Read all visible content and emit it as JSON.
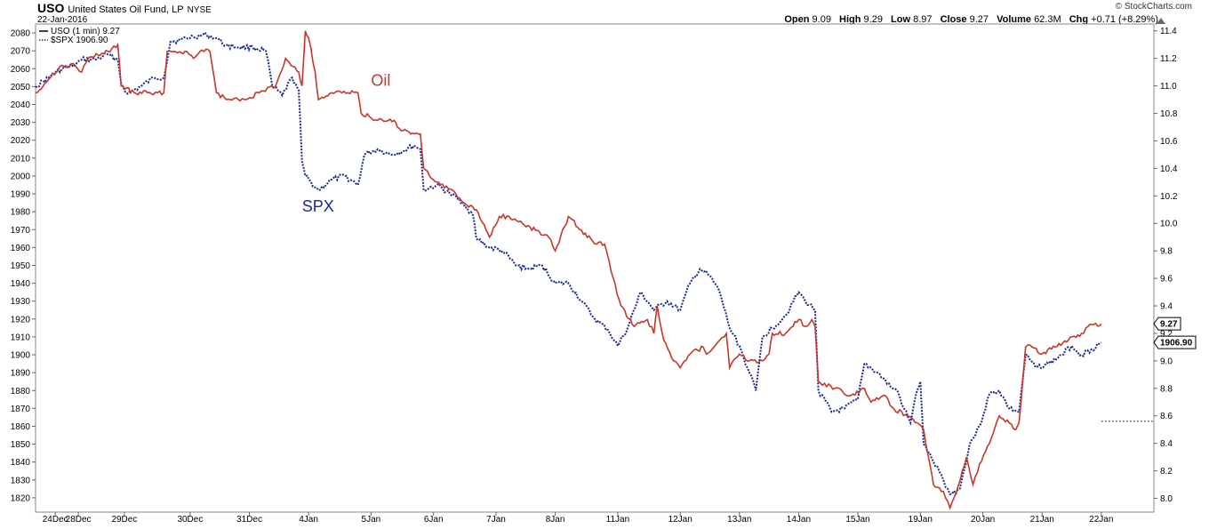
{
  "header": {
    "symbol": "USO",
    "name": "United States Oil Fund, LP",
    "exchange": "NYSE",
    "date": "22-Jan-2016",
    "brand": "© StockCharts.com",
    "ohlc": {
      "open_label": "Open",
      "open": "9.09",
      "high_label": "High",
      "high": "9.29",
      "low_label": "Low",
      "low": "8.97",
      "close_label": "Close",
      "close": "9.27",
      "volume_label": "Volume",
      "volume": "62.3M",
      "chg_label": "Chg",
      "chg": "+0.71 (+8.29%)"
    }
  },
  "colors": {
    "oil": "#c0392b",
    "spx": "#1a2a8c",
    "oil_black": "#000000"
  },
  "chart_data": {
    "type": "line",
    "title": "",
    "legend": [
      {
        "name": "USO (1 min) 9.27",
        "style": "solid"
      },
      {
        "name": "$SPX 1906.90",
        "style": "dotted"
      }
    ],
    "legend_placement": "top-left",
    "annotations": [
      {
        "text": "Oil",
        "x": 4.9,
        "y": 11.0,
        "color": "#c0392b"
      },
      {
        "text": "SPX",
        "x": 3.85,
        "y": 1980,
        "color": "#1a2a8c"
      }
    ],
    "x_categories": [
      "24Dec",
      "28Dec",
      "29Dec",
      "30Dec",
      "31Dec",
      "4Jan",
      "5Jan",
      "6Jan",
      "7Jan",
      "8Jan",
      "11Jan",
      "12Jan",
      "13Jan",
      "14Jan",
      "15Jan",
      "19Jan",
      "20Jan",
      "21Jan",
      "22Jan"
    ],
    "x_label_pos": [
      0.1,
      0.45,
      1.15,
      2.15,
      3.05,
      3.95,
      4.9,
      5.85,
      6.8,
      7.7,
      8.65,
      9.6,
      10.5,
      11.4,
      12.3,
      13.25,
      14.2,
      15.1,
      16.0
    ],
    "x_range": [
      -0.2,
      16.8
    ],
    "left_axis": {
      "label": "",
      "range": [
        1812,
        2085
      ],
      "ticks": [
        2080,
        2070,
        2060,
        2050,
        2040,
        2030,
        2020,
        2010,
        2000,
        1990,
        1980,
        1970,
        1960,
        1950,
        1940,
        1930,
        1920,
        1910,
        1900,
        1890,
        1880,
        1870,
        1860,
        1850,
        1840,
        1830,
        1820
      ]
    },
    "right_axis": {
      "label": "",
      "range": [
        7.9,
        11.45
      ],
      "ticks": [
        11.4,
        11.2,
        11.0,
        10.8,
        10.6,
        10.4,
        10.2,
        10.0,
        9.8,
        9.6,
        9.4,
        9.2,
        9.0,
        8.8,
        8.6,
        8.4,
        8.2,
        8.0
      ]
    },
    "last_value_labels": {
      "uso": "9.27",
      "spx": "1906.90"
    },
    "reference_line": {
      "axis": "right",
      "value": 8.56
    },
    "series": [
      {
        "name": "USO (1 min) 9.27",
        "axis": "right",
        "points": [
          [
            -0.2,
            10.95
          ],
          [
            0.0,
            11.05
          ],
          [
            0.2,
            11.15
          ],
          [
            0.4,
            11.15
          ],
          [
            0.5,
            11.1
          ],
          [
            0.6,
            11.2
          ],
          [
            0.9,
            11.25
          ],
          [
            1.05,
            11.3
          ],
          [
            1.1,
            11.0
          ],
          [
            1.3,
            10.95
          ],
          [
            1.5,
            10.95
          ],
          [
            1.75,
            10.95
          ],
          [
            1.8,
            11.25
          ],
          [
            1.9,
            11.25
          ],
          [
            2.1,
            11.25
          ],
          [
            2.2,
            11.2
          ],
          [
            2.3,
            11.25
          ],
          [
            2.45,
            11.25
          ],
          [
            2.55,
            10.95
          ],
          [
            2.7,
            10.9
          ],
          [
            3.0,
            10.9
          ],
          [
            3.2,
            10.95
          ],
          [
            3.45,
            11.0
          ],
          [
            3.6,
            11.2
          ],
          [
            3.8,
            11.1
          ],
          [
            3.85,
            11.0
          ],
          [
            3.9,
            11.4
          ],
          [
            3.95,
            11.35
          ],
          [
            4.05,
            11.1
          ],
          [
            4.1,
            10.9
          ],
          [
            4.3,
            10.95
          ],
          [
            4.55,
            10.95
          ],
          [
            4.7,
            10.95
          ],
          [
            4.75,
            10.8
          ],
          [
            5.0,
            10.75
          ],
          [
            5.25,
            10.75
          ],
          [
            5.3,
            10.7
          ],
          [
            5.5,
            10.65
          ],
          [
            5.65,
            10.65
          ],
          [
            5.7,
            10.4
          ],
          [
            5.9,
            10.3
          ],
          [
            6.1,
            10.25
          ],
          [
            6.3,
            10.15
          ],
          [
            6.5,
            10.1
          ],
          [
            6.65,
            9.95
          ],
          [
            6.7,
            9.9
          ],
          [
            6.85,
            10.05
          ],
          [
            7.0,
            10.05
          ],
          [
            7.2,
            10.0
          ],
          [
            7.4,
            9.95
          ],
          [
            7.6,
            9.9
          ],
          [
            7.7,
            9.8
          ],
          [
            7.9,
            10.05
          ],
          [
            8.1,
            9.95
          ],
          [
            8.3,
            9.85
          ],
          [
            8.45,
            9.85
          ],
          [
            8.55,
            9.65
          ],
          [
            8.7,
            9.4
          ],
          [
            8.9,
            9.25
          ],
          [
            9.1,
            9.3
          ],
          [
            9.2,
            9.2
          ],
          [
            9.25,
            9.4
          ],
          [
            9.35,
            9.15
          ],
          [
            9.5,
            9.0
          ],
          [
            9.6,
            8.95
          ],
          [
            9.75,
            9.05
          ],
          [
            9.95,
            9.1
          ],
          [
            10.0,
            9.05
          ],
          [
            10.2,
            9.15
          ],
          [
            10.3,
            9.2
          ],
          [
            10.35,
            8.95
          ],
          [
            10.5,
            9.05
          ],
          [
            10.65,
            9.0
          ],
          [
            10.85,
            9.0
          ],
          [
            10.95,
            9.05
          ],
          [
            11.0,
            9.2
          ],
          [
            11.2,
            9.2
          ],
          [
            11.4,
            9.3
          ],
          [
            11.5,
            9.25
          ],
          [
            11.6,
            9.3
          ],
          [
            11.65,
            9.25
          ],
          [
            11.7,
            8.85
          ],
          [
            11.95,
            8.8
          ],
          [
            12.2,
            8.75
          ],
          [
            12.4,
            8.8
          ],
          [
            12.5,
            8.7
          ],
          [
            12.7,
            8.75
          ],
          [
            12.85,
            8.65
          ],
          [
            13.05,
            8.6
          ],
          [
            13.2,
            8.55
          ],
          [
            13.3,
            8.5
          ],
          [
            13.45,
            8.1
          ],
          [
            13.6,
            8.05
          ],
          [
            13.7,
            7.93
          ],
          [
            13.8,
            8.05
          ],
          [
            13.95,
            8.3
          ],
          [
            14.05,
            8.1
          ],
          [
            14.15,
            8.25
          ],
          [
            14.3,
            8.4
          ],
          [
            14.45,
            8.6
          ],
          [
            14.6,
            8.55
          ],
          [
            14.7,
            8.5
          ],
          [
            14.75,
            8.55
          ],
          [
            14.85,
            9.1
          ],
          [
            14.95,
            9.1
          ],
          [
            15.1,
            9.05
          ],
          [
            15.3,
            9.1
          ],
          [
            15.5,
            9.15
          ],
          [
            15.7,
            9.2
          ],
          [
            15.8,
            9.25
          ],
          [
            16.0,
            9.27
          ]
        ]
      },
      {
        "name": "$SPX 1906.90",
        "axis": "left",
        "points": [
          [
            -0.2,
            2050
          ],
          [
            0.0,
            2055
          ],
          [
            0.2,
            2060
          ],
          [
            0.4,
            2062
          ],
          [
            0.5,
            2065
          ],
          [
            0.7,
            2065
          ],
          [
            0.9,
            2068
          ],
          [
            1.05,
            2065
          ],
          [
            1.1,
            2052
          ],
          [
            1.2,
            2046
          ],
          [
            1.4,
            2050
          ],
          [
            1.6,
            2055
          ],
          [
            1.75,
            2055
          ],
          [
            1.85,
            2075
          ],
          [
            2.0,
            2076
          ],
          [
            2.2,
            2078
          ],
          [
            2.4,
            2079
          ],
          [
            2.55,
            2077
          ],
          [
            2.7,
            2073
          ],
          [
            2.9,
            2072
          ],
          [
            3.1,
            2072
          ],
          [
            3.3,
            2070
          ],
          [
            3.4,
            2050
          ],
          [
            3.55,
            2045
          ],
          [
            3.7,
            2055
          ],
          [
            3.75,
            2052
          ],
          [
            3.8,
            2048
          ],
          [
            3.85,
            2008
          ],
          [
            3.9,
            2000
          ],
          [
            4.1,
            1992
          ],
          [
            4.3,
            1998
          ],
          [
            4.5,
            2000
          ],
          [
            4.7,
            1995
          ],
          [
            4.8,
            2012
          ],
          [
            5.0,
            2015
          ],
          [
            5.2,
            2012
          ],
          [
            5.4,
            2014
          ],
          [
            5.55,
            2017
          ],
          [
            5.65,
            2015
          ],
          [
            5.7,
            1992
          ],
          [
            5.9,
            1995
          ],
          [
            6.1,
            1990
          ],
          [
            6.3,
            1985
          ],
          [
            6.45,
            1978
          ],
          [
            6.5,
            1965
          ],
          [
            6.7,
            1960
          ],
          [
            6.9,
            1958
          ],
          [
            7.1,
            1950
          ],
          [
            7.3,
            1948
          ],
          [
            7.5,
            1950
          ],
          [
            7.7,
            1940
          ],
          [
            7.9,
            1940
          ],
          [
            8.1,
            1930
          ],
          [
            8.3,
            1920
          ],
          [
            8.5,
            1914
          ],
          [
            8.65,
            1905
          ],
          [
            8.8,
            1915
          ],
          [
            9.0,
            1935
          ],
          [
            9.2,
            1925
          ],
          [
            9.4,
            1930
          ],
          [
            9.6,
            1925
          ],
          [
            9.75,
            1940
          ],
          [
            9.9,
            1948
          ],
          [
            10.05,
            1944
          ],
          [
            10.2,
            1935
          ],
          [
            10.35,
            1915
          ],
          [
            10.5,
            1905
          ],
          [
            10.65,
            1890
          ],
          [
            10.75,
            1880
          ],
          [
            10.85,
            1910
          ],
          [
            11.0,
            1915
          ],
          [
            11.2,
            1922
          ],
          [
            11.4,
            1935
          ],
          [
            11.5,
            1930
          ],
          [
            11.65,
            1925
          ],
          [
            11.7,
            1880
          ],
          [
            11.9,
            1868
          ],
          [
            12.1,
            1870
          ],
          [
            12.3,
            1875
          ],
          [
            12.4,
            1895
          ],
          [
            12.6,
            1890
          ],
          [
            12.8,
            1882
          ],
          [
            12.9,
            1880
          ],
          [
            13.0,
            1870
          ],
          [
            13.1,
            1862
          ],
          [
            13.2,
            1880
          ],
          [
            13.25,
            1885
          ],
          [
            13.3,
            1850
          ],
          [
            13.45,
            1840
          ],
          [
            13.6,
            1830
          ],
          [
            13.7,
            1822
          ],
          [
            13.85,
            1825
          ],
          [
            14.0,
            1850
          ],
          [
            14.15,
            1860
          ],
          [
            14.3,
            1878
          ],
          [
            14.45,
            1880
          ],
          [
            14.6,
            1870
          ],
          [
            14.75,
            1868
          ],
          [
            14.85,
            1900
          ],
          [
            15.0,
            1893
          ],
          [
            15.2,
            1895
          ],
          [
            15.4,
            1900
          ],
          [
            15.55,
            1905
          ],
          [
            15.7,
            1900
          ],
          [
            15.85,
            1903
          ],
          [
            16.0,
            1906.9
          ]
        ]
      }
    ]
  }
}
